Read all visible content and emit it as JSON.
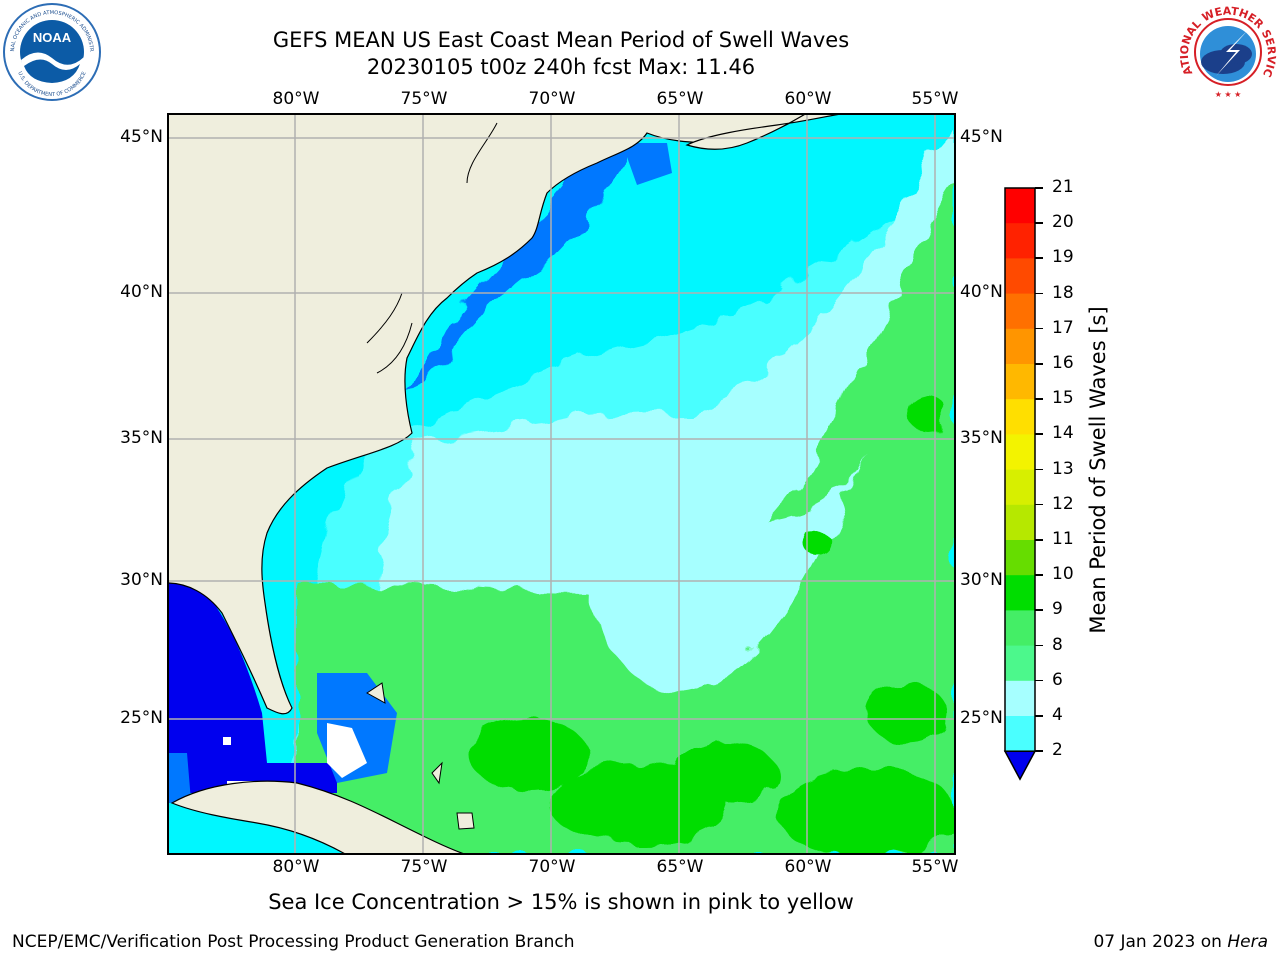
{
  "title": {
    "line1": "GEFS MEAN US East Coast Mean Period of Swell Waves",
    "line2": "20230105 t00z 240h fcst   Max: 11.46"
  },
  "map": {
    "lon_labels": [
      "80°W",
      "75°W",
      "70°W",
      "65°W",
      "60°W",
      "55°W"
    ],
    "lat_labels": [
      "45°N",
      "40°N",
      "35°N",
      "30°N",
      "25°N"
    ],
    "colors": {
      "land": "#efeedd",
      "frame": "#000000",
      "grid": "#b0b0b0"
    }
  },
  "colorbar": {
    "label": "Mean Period of Swell Waves [s]",
    "ticks": [
      "21",
      "20",
      "19",
      "18",
      "17",
      "16",
      "15",
      "14",
      "13",
      "12",
      "11",
      "10",
      "9",
      "8",
      "6",
      "4",
      "2"
    ],
    "colors": [
      "#ff0000",
      "#ff2200",
      "#ff4a00",
      "#ff7000",
      "#ff9500",
      "#ffb800",
      "#ffdf00",
      "#f3f300",
      "#d7ef00",
      "#b6e800",
      "#66dd00",
      "#00dd00",
      "#44ee66",
      "#4cf88c",
      "#a6ffff",
      "#4affff",
      "#00f7ff",
      "#0078ff",
      "#0000ee"
    ]
  },
  "caption": "Sea Ice Concentration > 15% is shown in pink to yellow",
  "footer": {
    "left": "NCEP/EMC/Verification Post Processing Product Generation Branch",
    "date": "07 Jan 2023 on ",
    "host": "Hera"
  },
  "logos": {
    "noaa": "NOAA",
    "noaa_ring_top": "NATIONAL OCEANIC AND ATMOSPHERIC ADMINISTRATION",
    "noaa_ring_bottom": "U.S. DEPARTMENT OF COMMERCE",
    "nws_ring": "NATIONAL WEATHER SERVICE"
  }
}
